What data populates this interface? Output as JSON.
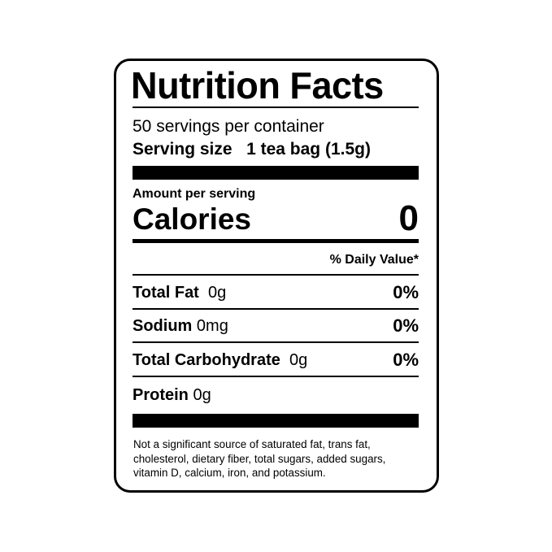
{
  "title": "Nutrition Facts",
  "servings_per_container": "50 servings per container",
  "serving_size_label": "Serving size",
  "serving_size_value": "1 tea bag (1.5g)",
  "amount_per_serving": "Amount per serving",
  "calories_label": "Calories",
  "calories_value": "0",
  "daily_value_header": "% Daily Value*",
  "nutrients": [
    {
      "name": "Total Fat",
      "amount": "0g",
      "dv": "0%"
    },
    {
      "name": "Sodium",
      "amount": "0mg",
      "dv": "0%"
    },
    {
      "name": "Total Carbohydrate",
      "amount": "0g",
      "dv": "0%"
    },
    {
      "name": "Protein",
      "amount": "0g",
      "dv": ""
    }
  ],
  "footnote": "Not a significant source of saturated fat, trans fat, cholesterol, dietary fiber, total sugars, added sugars, vitamin D, calcium, iron, and potassium."
}
